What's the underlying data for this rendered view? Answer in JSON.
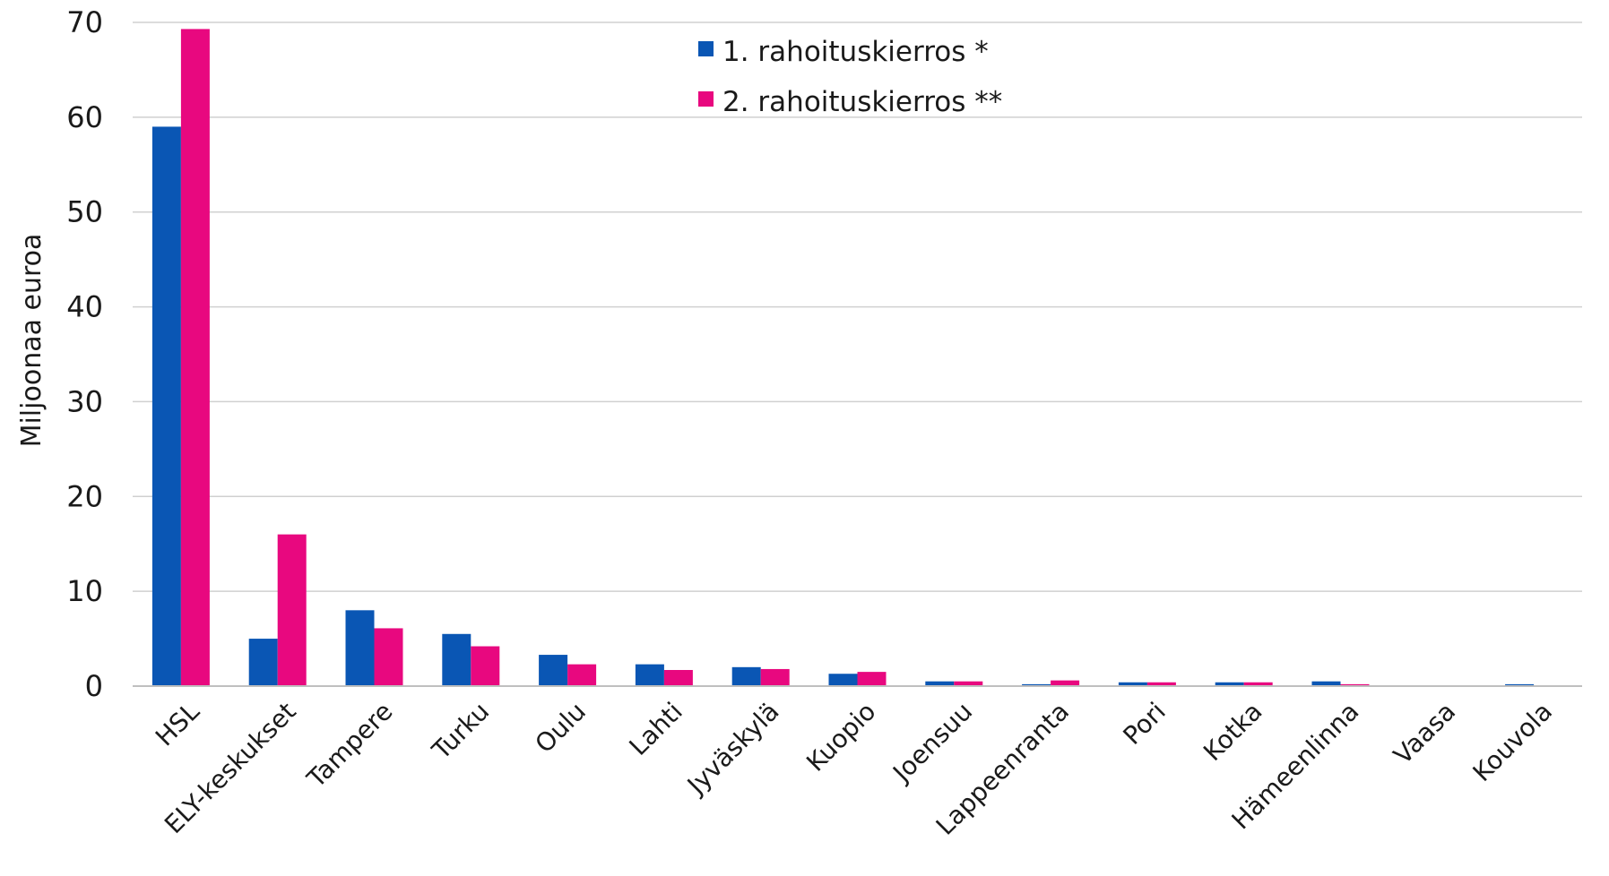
{
  "chart_data": {
    "type": "bar",
    "title": "",
    "xlabel": "",
    "ylabel": "Miljoonaa euroa",
    "ylim": [
      0,
      70
    ],
    "yticks": [
      0,
      10,
      20,
      30,
      40,
      50,
      60,
      70
    ],
    "grid": true,
    "legend_position": "top-center",
    "categories": [
      "HSL",
      "ELY-keskukset",
      "Tampere",
      "Turku",
      "Oulu",
      "Lahti",
      "Jyväskylä",
      "Kuopio",
      "Joensuu",
      "Lappeenranta",
      "Pori",
      "Kotka",
      "Hämeenlinna",
      "Vaasa",
      "Kouvola"
    ],
    "series": [
      {
        "name": "1. rahoituskierros *",
        "color": "#0a56b4",
        "values": [
          59,
          5,
          8,
          5.5,
          3.3,
          2.3,
          2.0,
          1.3,
          0.5,
          0.2,
          0.4,
          0.4,
          0.5,
          0,
          0.2
        ]
      },
      {
        "name": "2. rahoituskierros **",
        "color": "#e8087f",
        "values": [
          69.3,
          16,
          6.1,
          4.2,
          2.3,
          1.7,
          1.8,
          1.5,
          0.5,
          0.6,
          0.4,
          0.4,
          0.2,
          0,
          0
        ]
      }
    ]
  }
}
